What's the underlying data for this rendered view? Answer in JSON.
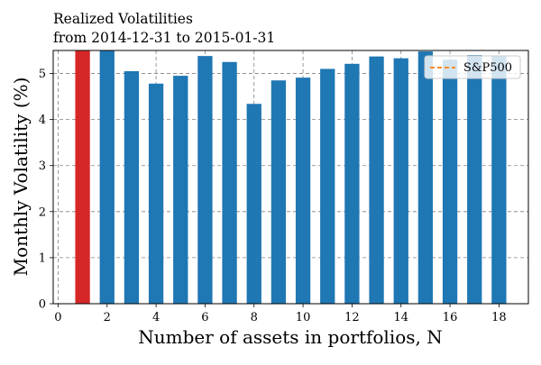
{
  "chart_data": {
    "type": "bar",
    "title": "Realized Volatilities",
    "subtitle": "from 2014-12-31 to 2015-01-31",
    "xlabel": "Number of assets in portfolios, N",
    "ylabel": "Monthly Volatility (%)",
    "x": [
      1,
      2,
      3,
      4,
      5,
      6,
      7,
      8,
      9,
      10,
      11,
      12,
      13,
      14,
      15,
      16,
      17,
      18
    ],
    "values": [
      5.6,
      5.5,
      5.05,
      4.78,
      4.95,
      5.38,
      5.25,
      4.34,
      4.85,
      4.91,
      5.1,
      5.21,
      5.37,
      5.33,
      5.48,
      5.3,
      5.4,
      5.38
    ],
    "bar_colors": [
      "#d62728",
      "#1f77b4",
      "#1f77b4",
      "#1f77b4",
      "#1f77b4",
      "#1f77b4",
      "#1f77b4",
      "#1f77b4",
      "#1f77b4",
      "#1f77b4",
      "#1f77b4",
      "#1f77b4",
      "#1f77b4",
      "#1f77b4",
      "#1f77b4",
      "#1f77b4",
      "#1f77b4",
      "#1f77b4"
    ],
    "xlim": [
      -0.2,
      19.2
    ],
    "ylim": [
      0,
      5.5
    ],
    "xticks": [
      0,
      2,
      4,
      6,
      8,
      10,
      12,
      14,
      16,
      18
    ],
    "yticks": [
      0,
      1,
      2,
      3,
      4,
      5
    ],
    "grid": true,
    "grid_style": "dashed",
    "legend": {
      "placement": "top-right",
      "entries": [
        {
          "label": "S&P500",
          "style": "dashed",
          "color": "#ff7f0e"
        }
      ]
    }
  }
}
